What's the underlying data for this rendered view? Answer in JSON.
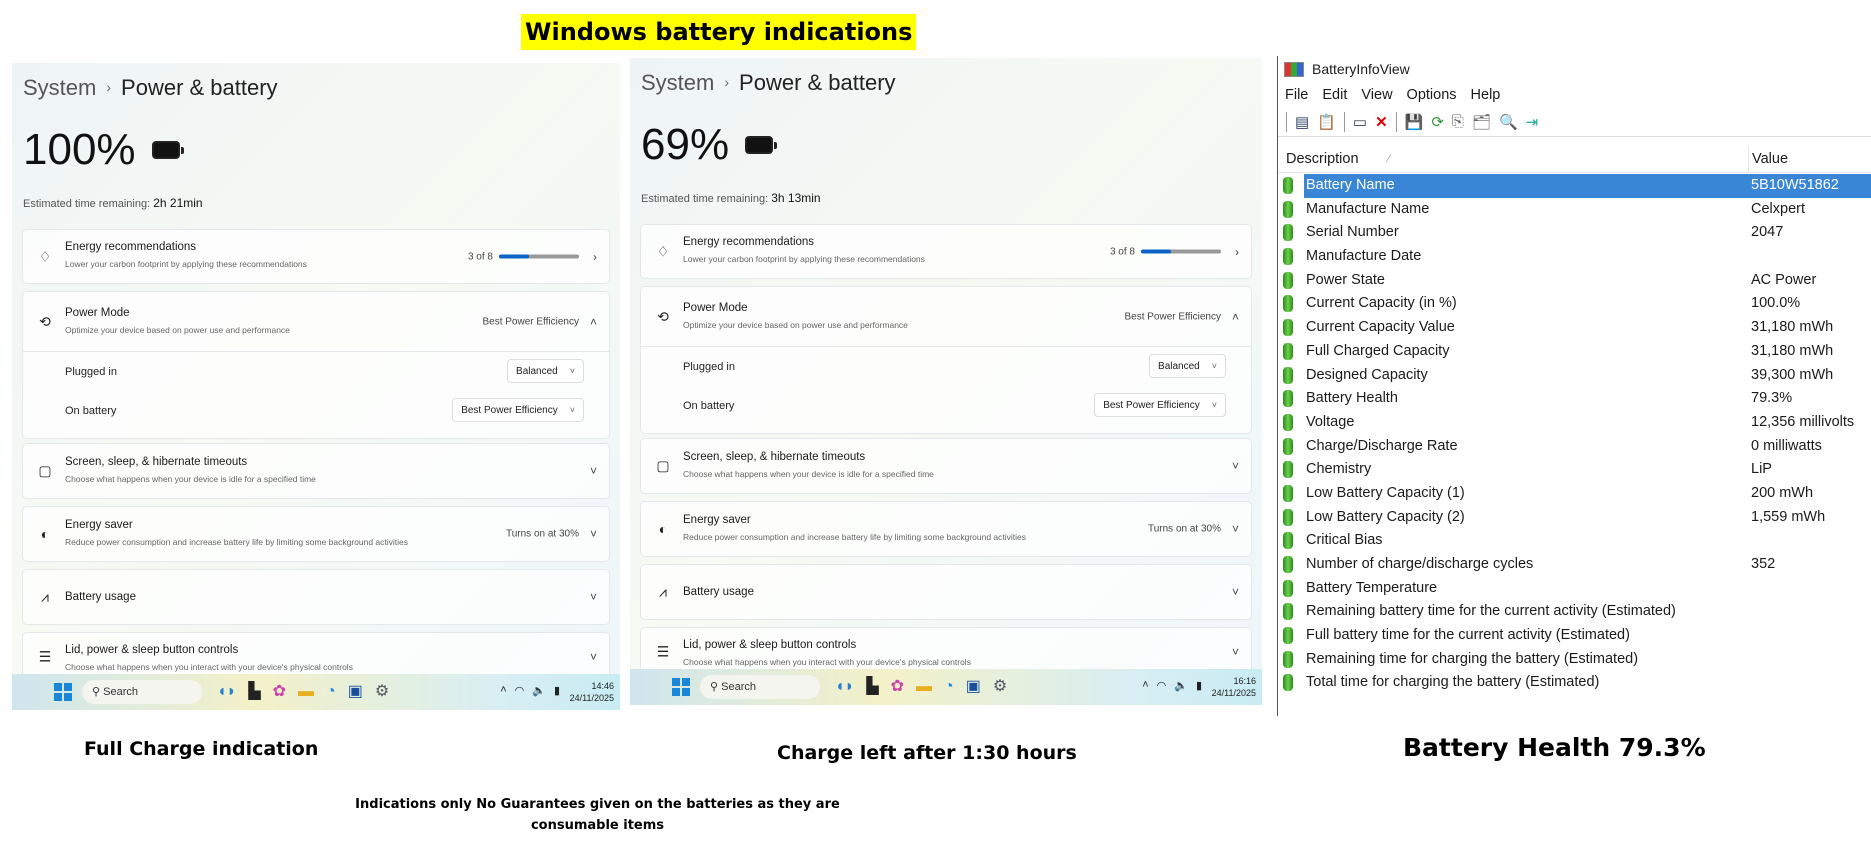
{
  "main_title": "Windows battery indications",
  "panels": [
    {
      "breadcrumb_parent": "System",
      "breadcrumb_current": "Power & battery",
      "battery_percent": "100%",
      "battery_level": 100,
      "est_label": "Estimated time remaining:",
      "est_value": "2h 21min",
      "energy_rec": {
        "title": "Energy recommendations",
        "subtitle": "Lower your carbon footprint by applying these recommendations",
        "count": "3 of 8",
        "progress": 0.375
      },
      "power_mode": {
        "title": "Power Mode",
        "subtitle": "Optimize your device based on power use and performance",
        "value": "Best Power Efficiency",
        "plugged_label": "Plugged in",
        "plugged_value": "Balanced",
        "battery_label": "On battery",
        "battery_value": "Best Power Efficiency"
      },
      "screen_sleep": {
        "title": "Screen, sleep, & hibernate timeouts",
        "subtitle": "Choose what happens when your device is idle for a specified time"
      },
      "energy_saver": {
        "title": "Energy saver",
        "subtitle": "Reduce power consumption and increase battery life by limiting some background activities",
        "value": "Turns on at 30%"
      },
      "battery_usage": {
        "title": "Battery usage"
      },
      "lid": {
        "title": "Lid, power & sleep button controls",
        "subtitle": "Choose what happens when you interact with your device's physical controls"
      },
      "taskbar": {
        "search": "Search",
        "time": "14:46",
        "date": "24/11/2025"
      }
    },
    {
      "breadcrumb_parent": "System",
      "breadcrumb_current": "Power & battery",
      "battery_percent": "69%",
      "battery_level": 69,
      "est_label": "Estimated time remaining:",
      "est_value": "3h 13min",
      "energy_rec": {
        "title": "Energy recommendations",
        "subtitle": "Lower your carbon footprint by applying these recommendations",
        "count": "3 of 8",
        "progress": 0.375
      },
      "power_mode": {
        "title": "Power Mode",
        "subtitle": "Optimize your device based on power use and performance",
        "value": "Best Power Efficiency",
        "plugged_label": "Plugged in",
        "plugged_value": "Balanced",
        "battery_label": "On battery",
        "battery_value": "Best Power Efficiency"
      },
      "screen_sleep": {
        "title": "Screen, sleep, & hibernate timeouts",
        "subtitle": "Choose what happens when your device is idle for a specified time"
      },
      "energy_saver": {
        "title": "Energy saver",
        "subtitle": "Reduce power consumption and increase battery life by limiting some background activities",
        "value": "Turns on at 30%"
      },
      "battery_usage": {
        "title": "Battery usage"
      },
      "lid": {
        "title": "Lid, power & sleep button controls",
        "subtitle": "Choose what happens when you interact with your device's physical controls"
      },
      "taskbar": {
        "search": "Search",
        "time": "16:16",
        "date": "24/11/2025"
      }
    }
  ],
  "captions": {
    "full_charge": "Full Charge indication",
    "charge_left": "Charge left after 1:30 hours",
    "battery_health": "Battery Health 79.3%",
    "disclaimer_line1": "Indications only No Guarantees given on the batteries as they are",
    "disclaimer_line2": "consumable items"
  },
  "batteryinfoview": {
    "title": "BatteryInfoView",
    "menu": [
      "File",
      "Edit",
      "View",
      "Options",
      "Help"
    ],
    "columns": {
      "description": "Description",
      "value": "Value"
    },
    "selected_color": "#3a86d6",
    "rows": [
      {
        "d": "Battery Name",
        "v": "5B10W51862"
      },
      {
        "d": "Manufacture Name",
        "v": "Celxpert"
      },
      {
        "d": "Serial Number",
        "v": " 2047"
      },
      {
        "d": "Manufacture Date",
        "v": ""
      },
      {
        "d": "Power State",
        "v": "AC Power"
      },
      {
        "d": "Current Capacity (in %)",
        "v": "100.0%"
      },
      {
        "d": "Current Capacity Value",
        "v": "31,180 mWh"
      },
      {
        "d": "Full Charged Capacity",
        "v": "31,180 mWh"
      },
      {
        "d": "Designed Capacity",
        "v": "39,300 mWh"
      },
      {
        "d": "Battery Health",
        "v": "79.3%"
      },
      {
        "d": "Voltage",
        "v": "12,356 millivolts"
      },
      {
        "d": "Charge/Discharge Rate",
        "v": "0 milliwatts"
      },
      {
        "d": "Chemistry",
        "v": "LiP"
      },
      {
        "d": "Low Battery Capacity (1)",
        "v": "200 mWh"
      },
      {
        "d": "Low Battery Capacity (2)",
        "v": "1,559 mWh"
      },
      {
        "d": "Critical Bias",
        "v": ""
      },
      {
        "d": "Number of charge/discharge cycles",
        "v": "352"
      },
      {
        "d": "Battery Temperature",
        "v": ""
      },
      {
        "d": "Remaining battery time for the current activity (Estimated)",
        "v": ""
      },
      {
        "d": "Full battery time for the current activity (Estimated)",
        "v": ""
      },
      {
        "d": "Remaining time for charging the battery (Estimated)",
        "v": ""
      },
      {
        "d": "Total  time for charging the battery (Estimated)",
        "v": ""
      }
    ]
  }
}
